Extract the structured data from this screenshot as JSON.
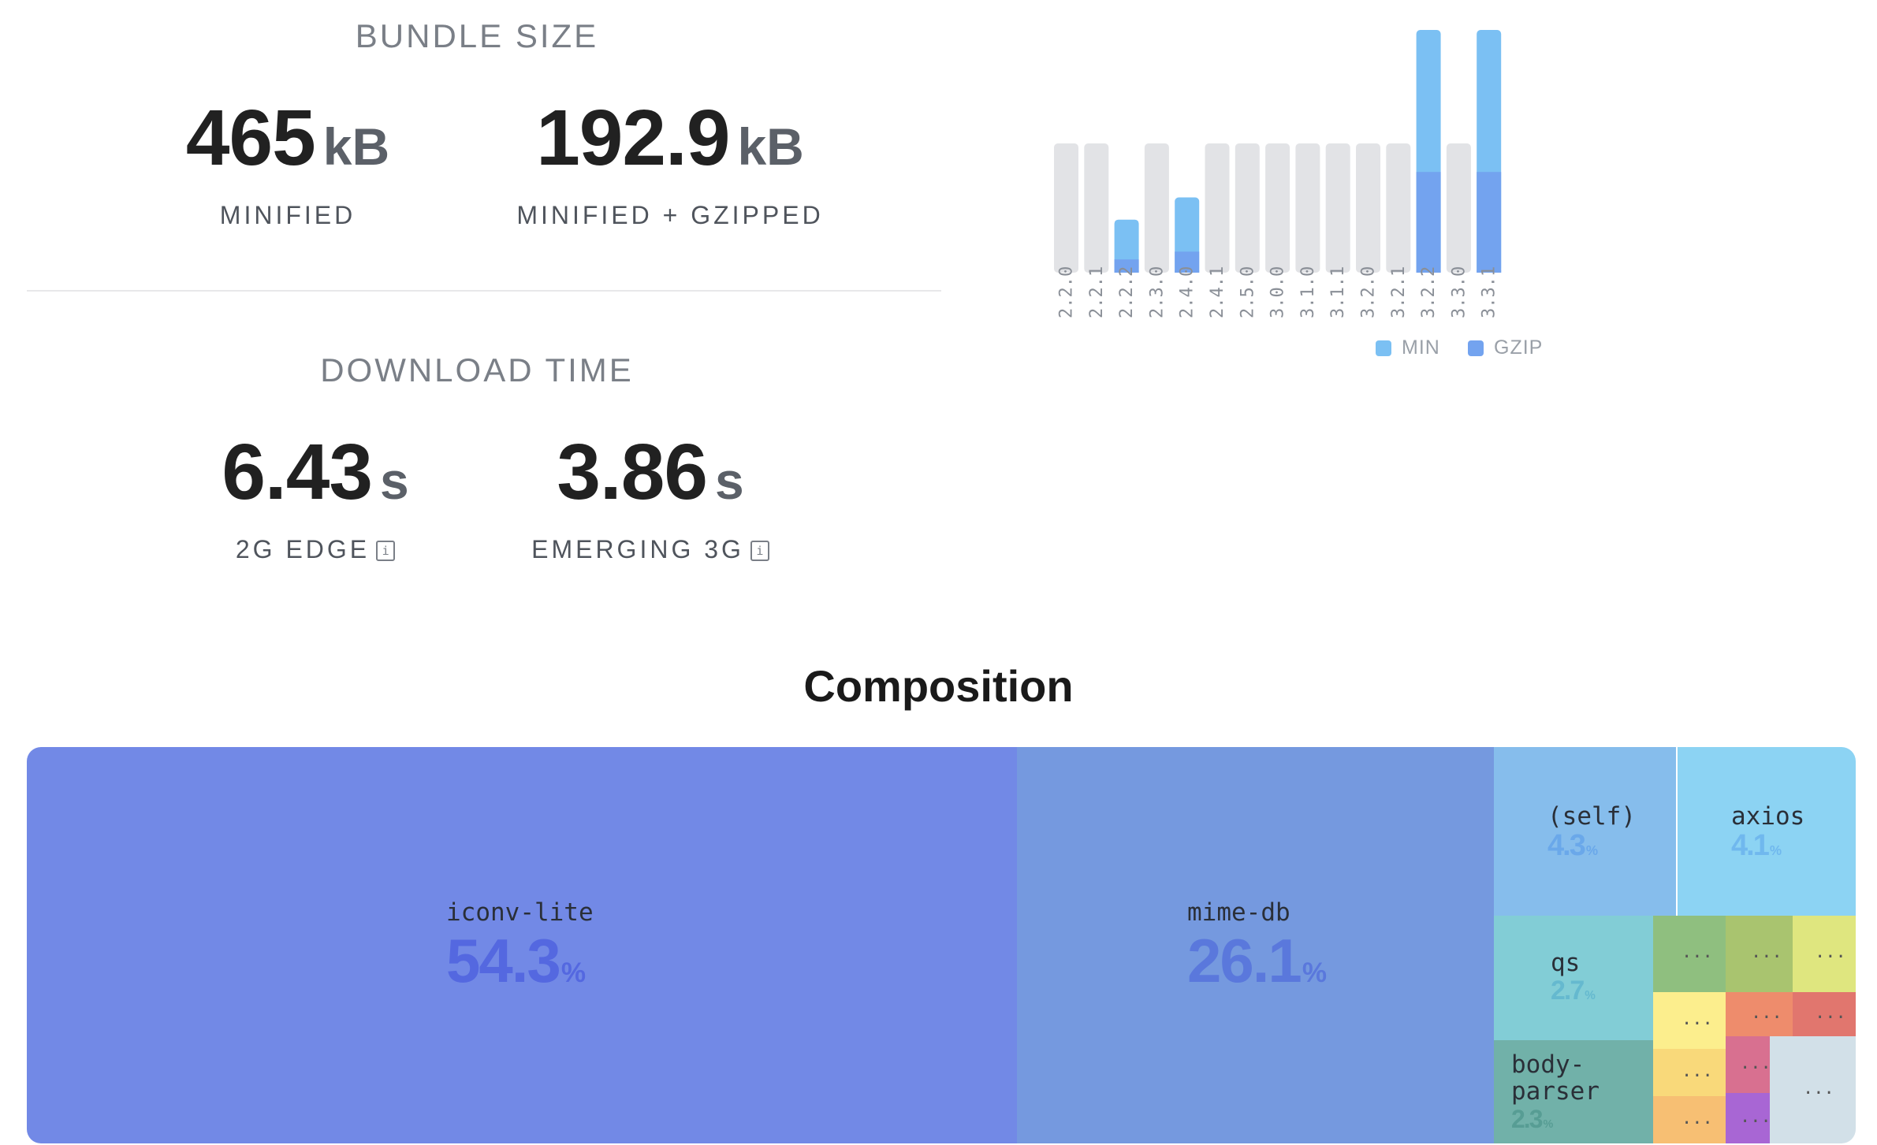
{
  "bundle_size": {
    "title": "BUNDLE SIZE",
    "minified": {
      "value": "465",
      "unit": "kB",
      "label": "MINIFIED"
    },
    "gzipped": {
      "value": "192.9",
      "unit": "kB",
      "label": "MINIFIED + GZIPPED"
    }
  },
  "download_time": {
    "title": "DOWNLOAD TIME",
    "edge": {
      "value": "6.43",
      "unit": "s",
      "label": "2G EDGE",
      "info_icon": "info-icon"
    },
    "emerging3g": {
      "value": "3.86",
      "unit": "s",
      "label": "EMERGING 3G",
      "info_icon": "info-icon"
    }
  },
  "chart_data": {
    "type": "bar",
    "categories": [
      "2.2.0",
      "2.2.1",
      "2.2.2",
      "2.3.0",
      "2.4.0",
      "2.4.1",
      "2.5.0",
      "3.0.0",
      "3.1.0",
      "3.1.1",
      "3.2.0",
      "3.2.1",
      "3.2.2",
      "3.3.0",
      "3.3.1"
    ],
    "series": [
      {
        "name": "MIN",
        "color": "#7bc0f3",
        "values": [
          null,
          null,
          101.6,
          null,
          144.2,
          null,
          null,
          null,
          null,
          null,
          null,
          null,
          465,
          null,
          465
        ]
      },
      {
        "name": "GZIP",
        "color": "#73a3ef",
        "values": [
          null,
          null,
          25.4,
          null,
          40.3,
          null,
          null,
          null,
          null,
          null,
          null,
          null,
          192.9,
          null,
          192.9
        ]
      }
    ],
    "unavailable_color": "#e2e3e6",
    "ylim": [
      0,
      465
    ],
    "legend_position": "bottom"
  },
  "composition": {
    "title": "Composition",
    "items": [
      {
        "name": "iconv-lite",
        "percent": "54.3",
        "color": "#7289e6",
        "pct_color": "#5468e0"
      },
      {
        "name": "mime-db",
        "percent": "26.1",
        "color": "#7599df",
        "pct_color": "#5a78dc"
      },
      {
        "name": "(self)",
        "percent": "4.3",
        "color": "#86bdec",
        "pct_color": "#6aa8ea"
      },
      {
        "name": "axios",
        "percent": "4.1",
        "color": "#8cd3f3",
        "pct_color": "#70b8ee"
      },
      {
        "name": "qs",
        "percent": "2.7",
        "color": "#82cdd6",
        "pct_color": "#65b9cf"
      },
      {
        "name": "body-\nparser",
        "percent": "2.3",
        "color": "#71b1a9",
        "pct_color": "#579d94"
      }
    ],
    "small_label": "..."
  }
}
